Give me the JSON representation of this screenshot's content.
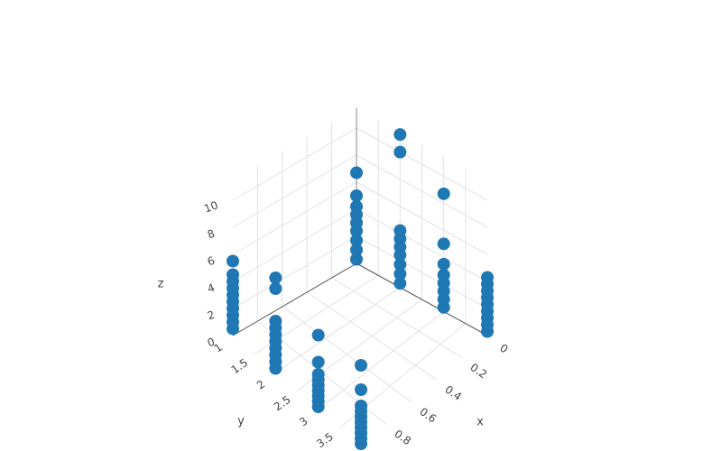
{
  "chart_data": {
    "type": "scatter3d",
    "x_label": "x",
    "y_label": "y",
    "z_label": "z",
    "color": "#1f77b4",
    "xlim": [
      0,
      1
    ],
    "ylim": [
      1,
      4
    ],
    "zlim": [
      0,
      11.5
    ],
    "xticks": [
      0,
      0.2,
      0.4,
      0.6,
      0.8
    ],
    "yticks": [
      1,
      1.5,
      2,
      2.5,
      3,
      3.5
    ],
    "zticks": [
      0,
      2,
      4,
      6,
      8,
      10
    ],
    "grid": true,
    "x": [
      0,
      0,
      0,
      0,
      0,
      0,
      0,
      0,
      0,
      0,
      0,
      0,
      0,
      0,
      0,
      0,
      0,
      0,
      0,
      0,
      0,
      0,
      0,
      0,
      0,
      0,
      0,
      0,
      0,
      0,
      0,
      0,
      0,
      0,
      0,
      1,
      1,
      1,
      1,
      1,
      1,
      1,
      1,
      1,
      1,
      1,
      1,
      1,
      1,
      1,
      1,
      1,
      1,
      1,
      1,
      1,
      1,
      1,
      1,
      1,
      1,
      1,
      1,
      1,
      1,
      1,
      1,
      1,
      1,
      1,
      1,
      1,
      1,
      1
    ],
    "y": [
      1,
      1,
      1,
      1,
      1,
      1,
      1,
      1,
      1,
      2,
      2,
      2,
      2,
      2,
      2,
      2,
      2,
      2,
      3,
      3,
      3,
      3,
      3,
      3,
      3,
      3,
      4,
      4,
      4,
      4,
      4,
      4,
      4,
      4,
      4,
      1,
      1,
      1,
      1,
      1,
      1,
      1,
      1,
      1,
      1,
      2,
      2,
      2,
      2,
      2,
      2,
      2,
      2,
      2,
      2,
      3,
      3,
      3,
      3,
      3,
      3,
      3,
      3,
      3,
      4,
      4,
      4,
      4,
      4,
      4,
      4,
      4,
      4,
      4
    ],
    "z": [
      0.3,
      1,
      1.7,
      2.4,
      3,
      3.6,
      4.2,
      5,
      6.7,
      0.3,
      1,
      1.7,
      2.4,
      3,
      3.6,
      4.2,
      10,
      11.3,
      0.3,
      0.9,
      1.5,
      2.1,
      2.7,
      3.5,
      5,
      8.7,
      0.3,
      0.8,
      1.3,
      1.8,
      2.3,
      2.8,
      3.3,
      3.8,
      4.3,
      0.5,
      1,
      1.5,
      2,
      2.5,
      3,
      3.5,
      4,
      4.5,
      5.5,
      0.3,
      0.8,
      1.3,
      1.8,
      2.3,
      2.8,
      3.3,
      3.8,
      6.2,
      7,
      0.2,
      0.6,
      1,
      1.4,
      1.8,
      2.2,
      2.6,
      3.5,
      5.5,
      0.2,
      0.6,
      1,
      1.4,
      1.8,
      2.2,
      2.6,
      3,
      4.2,
      6
    ]
  }
}
